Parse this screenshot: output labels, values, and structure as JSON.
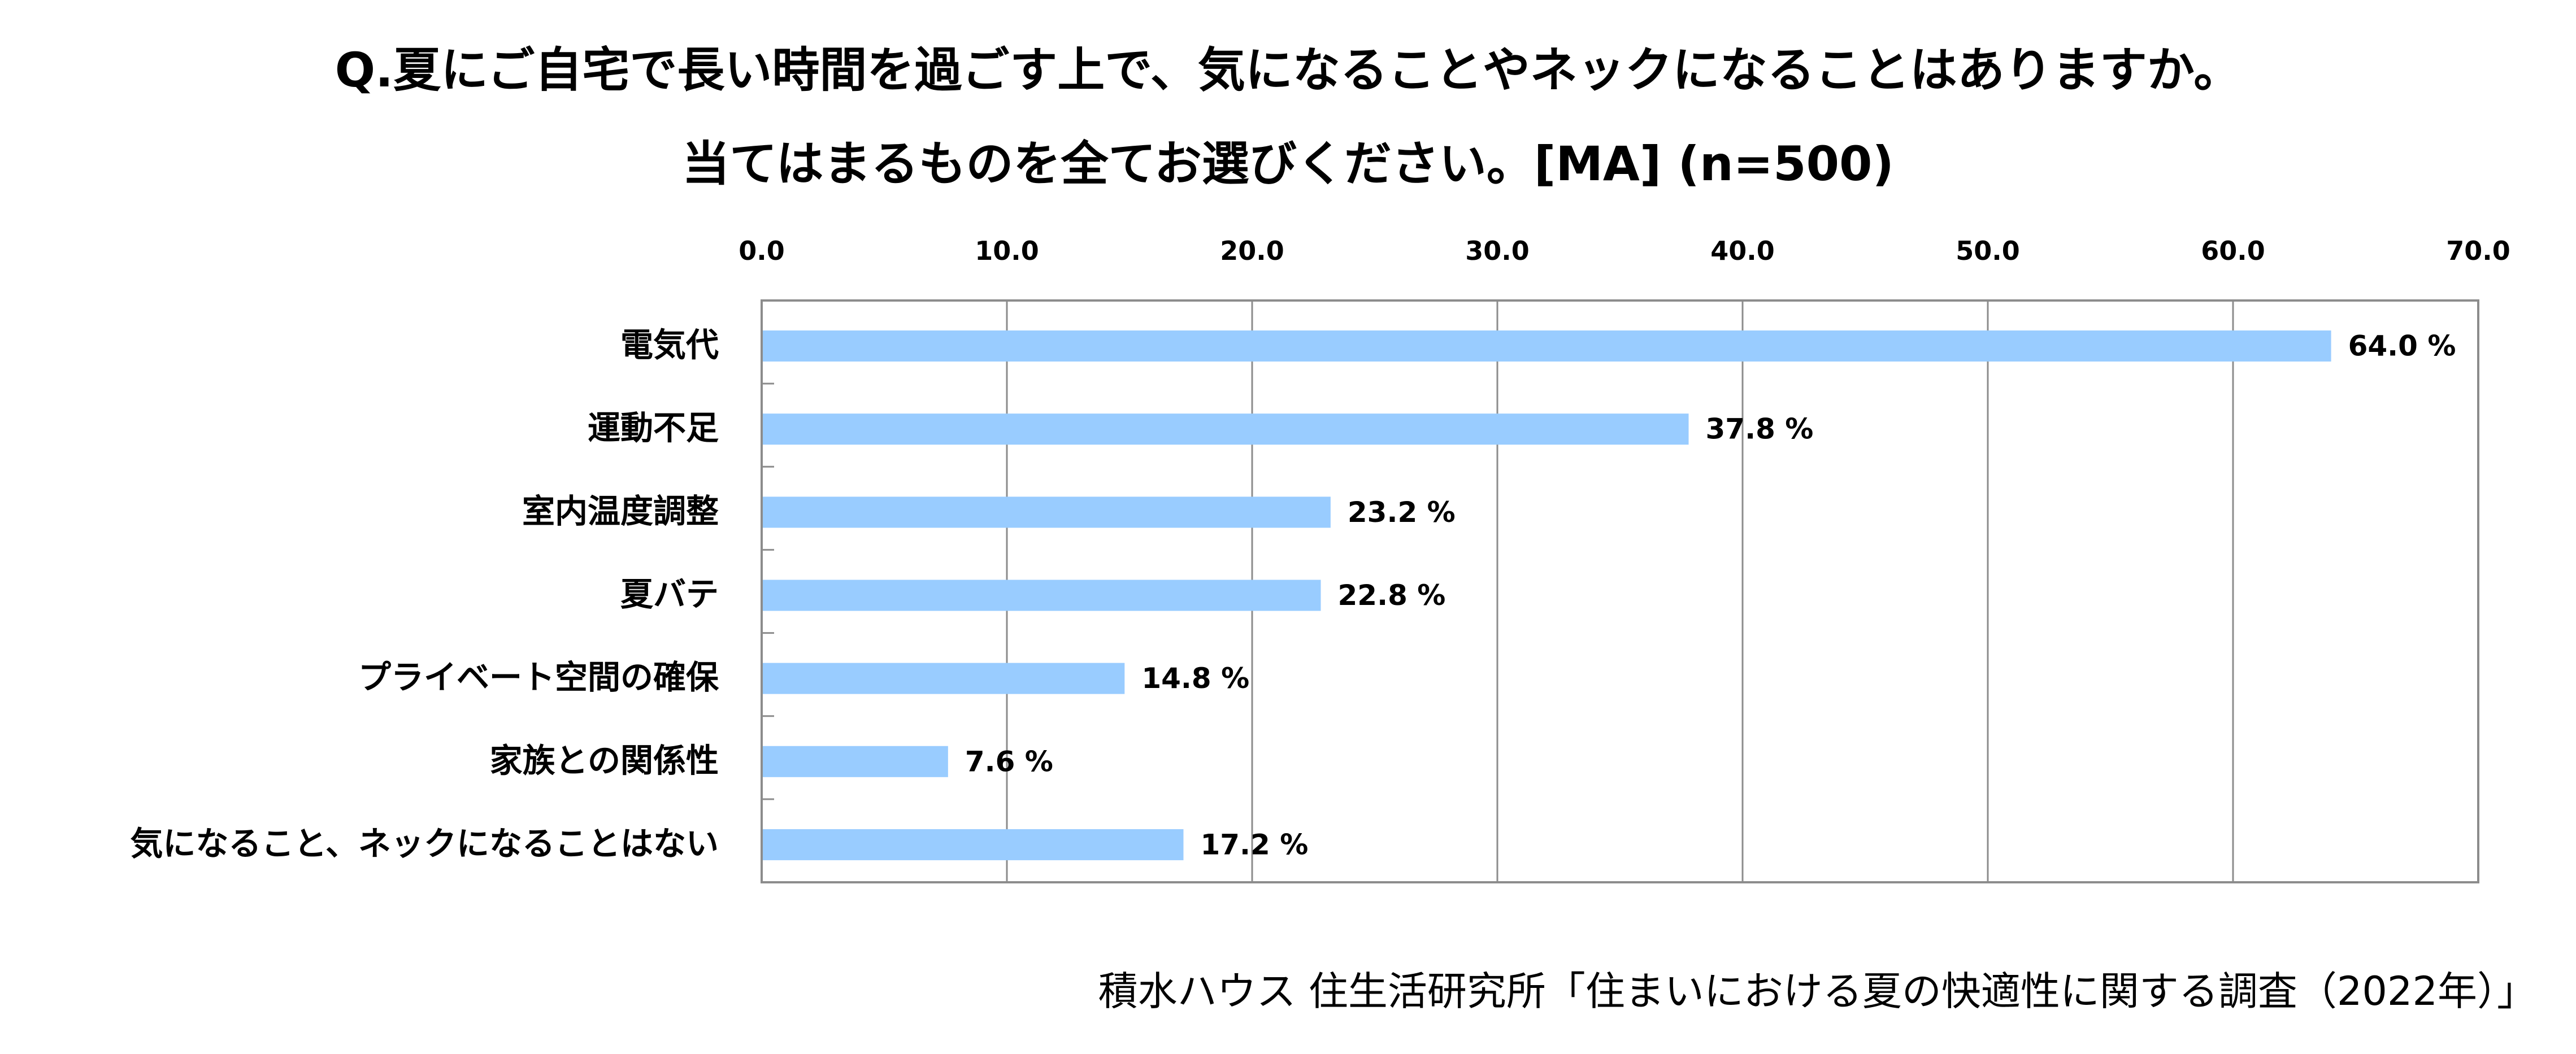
{
  "chart_data": {
    "type": "bar",
    "orientation": "horizontal",
    "title": "Q.夏にご自宅で長い時間を過ごす上で、気になることやネックになることはありますか。",
    "subtitle": "当てはまるものを全てお選びください。[MA] (n=500)",
    "categories": [
      "電気代",
      "運動不足",
      "室内温度調整",
      "夏バテ",
      "プライベート空間の確保",
      "家族との関係性",
      "気になること、ネックになることはない"
    ],
    "values": [
      64.0,
      37.8,
      23.2,
      22.8,
      14.8,
      7.6,
      17.2
    ],
    "value_labels": [
      "64.0 %",
      "37.8 %",
      "23.2 %",
      "22.8 %",
      "14.8 %",
      "7.6 %",
      "17.2 %"
    ],
    "xlim": [
      0,
      70
    ],
    "ticks": [
      "0.0",
      "10.0",
      "20.0",
      "30.0",
      "40.0",
      "50.0",
      "60.0",
      "70.0"
    ],
    "axis_position": "top",
    "grid": true,
    "bar_color": "#99CCFF"
  },
  "source": "積水ハウス 住生活研究所「住まいにおける夏の快適性に関する調査（2022年）」"
}
